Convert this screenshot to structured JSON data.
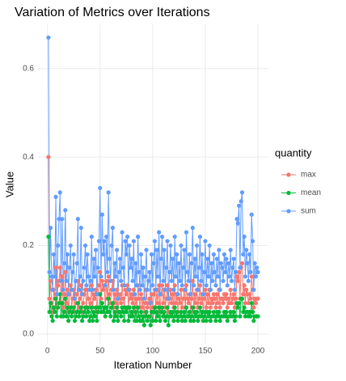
{
  "chart_data": {
    "type": "line",
    "title": "Variation of Metrics over Iterations",
    "x_label": "Iteration Number",
    "y_label": "Value",
    "legend_title": "quantity",
    "legend_position": "right",
    "grid": true,
    "xlim": [
      -8.95,
      209.95
    ],
    "xticks": [
      0,
      50,
      100,
      150,
      200
    ],
    "ylim": [
      -0.022,
      0.7
    ],
    "yticks": [
      {
        "value": 0,
        "label": "0.0"
      },
      0.2,
      0.4,
      0.6
    ],
    "x": [
      1,
      2,
      3,
      4,
      5,
      6,
      7,
      8,
      9,
      10,
      11,
      12,
      13,
      14,
      15,
      16,
      17,
      18,
      19,
      20,
      21,
      22,
      23,
      24,
      25,
      26,
      27,
      28,
      29,
      30,
      31,
      32,
      33,
      34,
      35,
      36,
      37,
      38,
      39,
      40,
      41,
      42,
      43,
      44,
      45,
      46,
      47,
      48,
      49,
      50,
      51,
      52,
      53,
      54,
      55,
      56,
      57,
      58,
      59,
      60,
      61,
      62,
      63,
      64,
      65,
      66,
      67,
      68,
      69,
      70,
      71,
      72,
      73,
      74,
      75,
      76,
      77,
      78,
      79,
      80,
      81,
      82,
      83,
      84,
      85,
      86,
      87,
      88,
      89,
      90,
      91,
      92,
      93,
      94,
      95,
      96,
      97,
      98,
      99,
      100,
      101,
      102,
      103,
      104,
      105,
      106,
      107,
      108,
      109,
      110,
      111,
      112,
      113,
      114,
      115,
      116,
      117,
      118,
      119,
      120,
      121,
      122,
      123,
      124,
      125,
      126,
      127,
      128,
      129,
      130,
      131,
      132,
      133,
      134,
      135,
      136,
      137,
      138,
      139,
      140,
      141,
      142,
      143,
      144,
      145,
      146,
      147,
      148,
      149,
      150,
      151,
      152,
      153,
      154,
      155,
      156,
      157,
      158,
      159,
      160,
      161,
      162,
      163,
      164,
      165,
      166,
      167,
      168,
      169,
      170,
      171,
      172,
      173,
      174,
      175,
      176,
      177,
      178,
      179,
      180,
      181,
      182,
      183,
      184,
      185,
      186,
      187,
      188,
      189,
      190,
      191,
      192,
      193,
      194,
      195,
      196,
      197,
      198,
      199,
      200
    ],
    "series": [
      {
        "name": "max",
        "color": "#F8766D",
        "values": [
          0.4,
          0.08,
          0.12,
          0.07,
          0.05,
          0.1,
          0.08,
          0.15,
          0.06,
          0.11,
          0.12,
          0.15,
          0.07,
          0.13,
          0.06,
          0.09,
          0.14,
          0.07,
          0.1,
          0.05,
          0.09,
          0.11,
          0.06,
          0.08,
          0.1,
          0.05,
          0.07,
          0.09,
          0.12,
          0.06,
          0.08,
          0.11,
          0.05,
          0.07,
          0.09,
          0.1,
          0.06,
          0.1,
          0.08,
          0.06,
          0.07,
          0.11,
          0.06,
          0.09,
          0.08,
          0.1,
          0.05,
          0.09,
          0.11,
          0.14,
          0.08,
          0.12,
          0.1,
          0.11,
          0.06,
          0.12,
          0.08,
          0.13,
          0.09,
          0.07,
          0.1,
          0.12,
          0.06,
          0.09,
          0.07,
          0.1,
          0.05,
          0.08,
          0.09,
          0.07,
          0.11,
          0.08,
          0.06,
          0.1,
          0.09,
          0.11,
          0.06,
          0.1,
          0.08,
          0.09,
          0.07,
          0.1,
          0.05,
          0.08,
          0.06,
          0.11,
          0.08,
          0.06,
          0.09,
          0.06,
          0.08,
          0.05,
          0.07,
          0.1,
          0.06,
          0.07,
          0.08,
          0.04,
          0.09,
          0.06,
          0.09,
          0.1,
          0.06,
          0.1,
          0.07,
          0.11,
          0.05,
          0.09,
          0.11,
          0.07,
          0.1,
          0.06,
          0.08,
          0.11,
          0.05,
          0.08,
          0.1,
          0.07,
          0.09,
          0.06,
          0.11,
          0.07,
          0.09,
          0.05,
          0.08,
          0.07,
          0.1,
          0.06,
          0.08,
          0.1,
          0.06,
          0.11,
          0.08,
          0.07,
          0.09,
          0.05,
          0.08,
          0.12,
          0.06,
          0.09,
          0.07,
          0.1,
          0.06,
          0.08,
          0.11,
          0.07,
          0.09,
          0.05,
          0.08,
          0.1,
          0.06,
          0.09,
          0.07,
          0.1,
          0.06,
          0.08,
          0.07,
          0.09,
          0.08,
          0.06,
          0.09,
          0.07,
          0.1,
          0.06,
          0.08,
          0.08,
          0.07,
          0.09,
          0.08,
          0.09,
          0.06,
          0.08,
          0.07,
          0.1,
          0.07,
          0.08,
          0.09,
          0.06,
          0.08,
          0.13,
          0.12,
          0.14,
          0.08,
          0.15,
          0.16,
          0.09,
          0.11,
          0.07,
          0.1,
          0.09,
          0.07,
          0.09,
          0.08,
          0.13,
          0.1,
          0.06,
          0.08,
          0.07,
          0.08,
          0.08
        ]
      },
      {
        "name": "mean",
        "color": "#00BA38",
        "values": [
          0.22,
          0.05,
          0.07,
          0.04,
          0.03,
          0.06,
          0.05,
          0.08,
          0.04,
          0.06,
          0.07,
          0.09,
          0.04,
          0.07,
          0.04,
          0.05,
          0.08,
          0.04,
          0.06,
          0.03,
          0.05,
          0.06,
          0.04,
          0.05,
          0.06,
          0.03,
          0.04,
          0.05,
          0.07,
          0.04,
          0.05,
          0.06,
          0.03,
          0.04,
          0.05,
          0.06,
          0.04,
          0.06,
          0.05,
          0.03,
          0.04,
          0.06,
          0.03,
          0.05,
          0.04,
          0.06,
          0.03,
          0.05,
          0.06,
          0.09,
          0.05,
          0.07,
          0.05,
          0.06,
          0.04,
          0.06,
          0.05,
          0.08,
          0.05,
          0.04,
          0.06,
          0.07,
          0.03,
          0.05,
          0.04,
          0.06,
          0.03,
          0.05,
          0.05,
          0.04,
          0.06,
          0.05,
          0.03,
          0.06,
          0.05,
          0.06,
          0.03,
          0.06,
          0.04,
          0.05,
          0.04,
          0.06,
          0.03,
          0.05,
          0.03,
          0.06,
          0.04,
          0.03,
          0.05,
          0.03,
          0.04,
          0.02,
          0.04,
          0.05,
          0.03,
          0.04,
          0.04,
          0.02,
          0.05,
          0.03,
          0.05,
          0.06,
          0.03,
          0.05,
          0.04,
          0.06,
          0.03,
          0.05,
          0.06,
          0.04,
          0.05,
          0.03,
          0.04,
          0.06,
          0.02,
          0.04,
          0.05,
          0.04,
          0.05,
          0.03,
          0.06,
          0.04,
          0.05,
          0.03,
          0.04,
          0.04,
          0.05,
          0.03,
          0.04,
          0.05,
          0.03,
          0.06,
          0.04,
          0.04,
          0.05,
          0.03,
          0.04,
          0.06,
          0.03,
          0.05,
          0.04,
          0.05,
          0.03,
          0.04,
          0.06,
          0.04,
          0.05,
          0.03,
          0.04,
          0.05,
          0.03,
          0.05,
          0.04,
          0.05,
          0.03,
          0.04,
          0.04,
          0.05,
          0.04,
          0.03,
          0.05,
          0.04,
          0.05,
          0.03,
          0.04,
          0.04,
          0.04,
          0.05,
          0.04,
          0.05,
          0.03,
          0.04,
          0.04,
          0.05,
          0.04,
          0.04,
          0.05,
          0.03,
          0.04,
          0.07,
          0.06,
          0.07,
          0.04,
          0.08,
          0.08,
          0.05,
          0.06,
          0.04,
          0.05,
          0.05,
          0.04,
          0.05,
          0.04,
          0.07,
          0.05,
          0.03,
          0.04,
          0.04,
          0.04,
          0.04
        ]
      },
      {
        "name": "sum",
        "color": "#619CFF",
        "values": [
          0.67,
          0.14,
          0.24,
          0.13,
          0.1,
          0.18,
          0.13,
          0.31,
          0.09,
          0.2,
          0.26,
          0.32,
          0.12,
          0.26,
          0.1,
          0.16,
          0.28,
          0.12,
          0.18,
          0.09,
          0.15,
          0.2,
          0.1,
          0.14,
          0.18,
          0.08,
          0.12,
          0.16,
          0.26,
          0.1,
          0.13,
          0.24,
          0.09,
          0.12,
          0.15,
          0.2,
          0.11,
          0.18,
          0.13,
          0.1,
          0.12,
          0.22,
          0.1,
          0.17,
          0.13,
          0.19,
          0.09,
          0.15,
          0.21,
          0.33,
          0.13,
          0.27,
          0.18,
          0.21,
          0.11,
          0.22,
          0.14,
          0.32,
          0.17,
          0.12,
          0.2,
          0.24,
          0.1,
          0.16,
          0.13,
          0.19,
          0.08,
          0.14,
          0.17,
          0.12,
          0.23,
          0.15,
          0.11,
          0.21,
          0.18,
          0.22,
          0.1,
          0.2,
          0.15,
          0.17,
          0.12,
          0.21,
          0.09,
          0.16,
          0.11,
          0.22,
          0.14,
          0.1,
          0.18,
          0.11,
          0.15,
          0.08,
          0.13,
          0.19,
          0.1,
          0.12,
          0.14,
          0.07,
          0.18,
          0.11,
          0.16,
          0.21,
          0.1,
          0.19,
          0.13,
          0.23,
          0.09,
          0.17,
          0.22,
          0.12,
          0.19,
          0.1,
          0.15,
          0.21,
          0.08,
          0.14,
          0.2,
          0.12,
          0.17,
          0.1,
          0.22,
          0.13,
          0.18,
          0.09,
          0.16,
          0.12,
          0.2,
          0.11,
          0.15,
          0.19,
          0.1,
          0.23,
          0.14,
          0.12,
          0.18,
          0.09,
          0.16,
          0.24,
          0.11,
          0.17,
          0.13,
          0.2,
          0.1,
          0.15,
          0.22,
          0.12,
          0.18,
          0.09,
          0.14,
          0.21,
          0.11,
          0.17,
          0.13,
          0.2,
          0.1,
          0.16,
          0.12,
          0.18,
          0.14,
          0.11,
          0.17,
          0.13,
          0.19,
          0.1,
          0.16,
          0.15,
          0.12,
          0.18,
          0.14,
          0.17,
          0.11,
          0.16,
          0.13,
          0.19,
          0.12,
          0.15,
          0.17,
          0.1,
          0.14,
          0.26,
          0.25,
          0.29,
          0.15,
          0.3,
          0.32,
          0.18,
          0.22,
          0.13,
          0.19,
          0.16,
          0.12,
          0.18,
          0.14,
          0.27,
          0.21,
          0.1,
          0.16,
          0.13,
          0.15,
          0.14
        ]
      }
    ]
  }
}
